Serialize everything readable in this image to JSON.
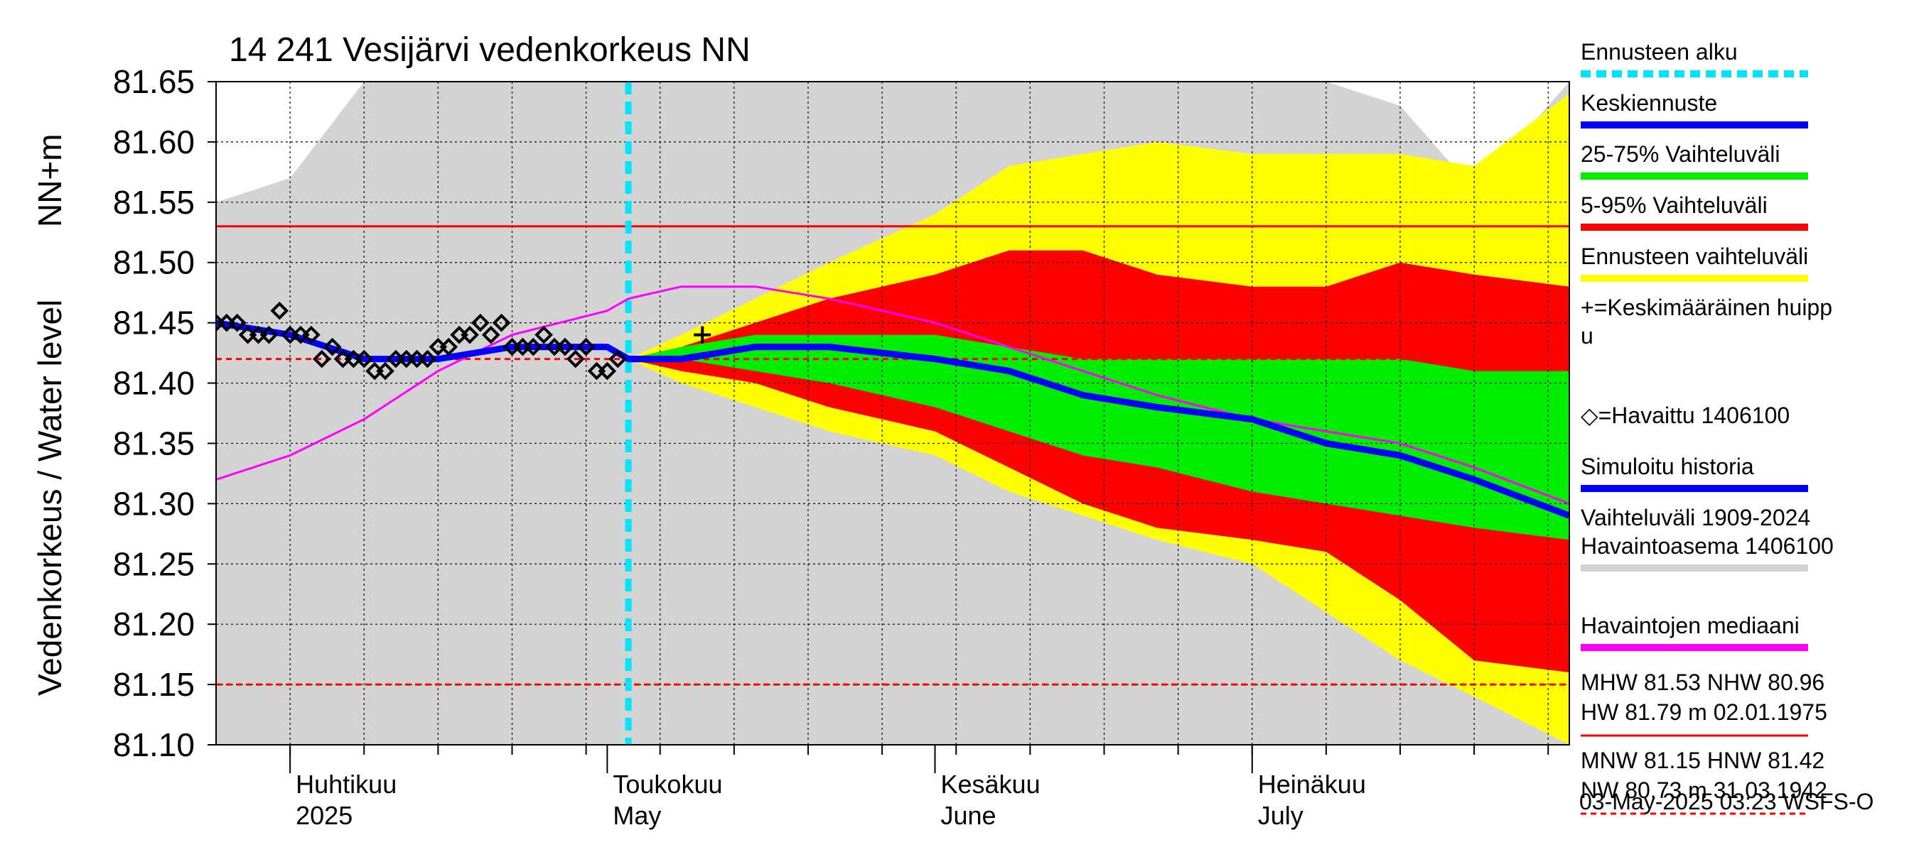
{
  "chart_data": {
    "type": "area",
    "title": "14 241 Vesijärvi vedenkorkeus NN",
    "ylabel": "Vedenkorkeus / Water level",
    "yunit": "NN+m",
    "ylim": [
      81.1,
      81.65
    ],
    "y_ticks": [
      "81.65",
      "81.60",
      "81.55",
      "81.50",
      "81.45",
      "81.40",
      "81.35",
      "81.30",
      "81.25",
      "81.20",
      "81.15",
      "81.10"
    ],
    "x_range": [
      "2025-03-25",
      "2025-07-31"
    ],
    "forecast_start": "2025-05-03",
    "months": [
      {
        "date": "2025-04-01",
        "fi": "Huhtikuu",
        "en": "2025"
      },
      {
        "date": "2025-05-01",
        "fi": "Toukokuu",
        "en": "May"
      },
      {
        "date": "2025-06-01",
        "fi": "Kesäkuu",
        "en": "June"
      },
      {
        "date": "2025-07-01",
        "fi": "Heinäkuu",
        "en": "July"
      }
    ],
    "reference_lines": [
      {
        "name": "MHW",
        "value": 81.53,
        "style": "solid"
      },
      {
        "name": "HNW",
        "value": 81.42,
        "style": "dashed"
      },
      {
        "name": "MNW",
        "value": 81.15,
        "style": "dashed"
      }
    ],
    "x_dates": [
      "2025-03-25",
      "2025-04-01",
      "2025-04-08",
      "2025-04-15",
      "2025-04-22",
      "2025-05-01",
      "2025-05-03",
      "2025-05-08",
      "2025-05-15",
      "2025-05-22",
      "2025-06-01",
      "2025-06-08",
      "2025-06-15",
      "2025-06-22",
      "2025-07-01",
      "2025-07-08",
      "2025-07-15",
      "2025-07-22",
      "2025-07-31"
    ],
    "series": [
      {
        "name": "Vaihteluväli 1909-2024 Havaintoasema 1406100",
        "color": "#d3d3d3",
        "high": [
          81.55,
          81.57,
          81.65,
          81.65,
          81.65,
          81.65,
          81.65,
          81.65,
          81.65,
          81.65,
          81.65,
          81.65,
          81.65,
          81.65,
          81.65,
          81.65,
          81.63,
          81.56,
          81.65
        ],
        "low": [
          81.1,
          81.1,
          81.1,
          81.1,
          81.1,
          81.1,
          81.1,
          81.1,
          81.1,
          81.1,
          81.1,
          81.1,
          81.1,
          81.1,
          81.1,
          81.1,
          81.1,
          81.1,
          81.1
        ]
      },
      {
        "name": "Ennusteen vaihteluväli",
        "color": "#ffff00",
        "high": [
          null,
          null,
          null,
          null,
          null,
          null,
          81.42,
          81.44,
          81.47,
          81.5,
          81.54,
          81.58,
          81.59,
          81.6,
          81.59,
          81.59,
          81.59,
          81.58,
          81.64
        ],
        "low": [
          null,
          null,
          null,
          null,
          null,
          null,
          81.42,
          81.4,
          81.38,
          81.36,
          81.34,
          81.31,
          81.29,
          81.27,
          81.25,
          81.21,
          81.17,
          81.14,
          81.1
        ]
      },
      {
        "name": "5-95% Vaihteluväli",
        "color": "#ff0000",
        "high": [
          null,
          null,
          null,
          null,
          null,
          null,
          81.42,
          81.43,
          81.45,
          81.47,
          81.49,
          81.51,
          81.51,
          81.49,
          81.48,
          81.48,
          81.5,
          81.49,
          81.48
        ],
        "low": [
          null,
          null,
          null,
          null,
          null,
          null,
          81.42,
          81.41,
          81.4,
          81.38,
          81.36,
          81.33,
          81.3,
          81.28,
          81.27,
          81.26,
          81.22,
          81.17,
          81.16
        ]
      },
      {
        "name": "25-75% Vaihteluväli",
        "color": "#00ee00",
        "high": [
          null,
          null,
          null,
          null,
          null,
          null,
          81.42,
          81.43,
          81.44,
          81.44,
          81.44,
          81.43,
          81.42,
          81.42,
          81.42,
          81.42,
          81.42,
          81.41,
          81.41
        ],
        "low": [
          null,
          null,
          null,
          null,
          null,
          null,
          81.42,
          81.42,
          81.41,
          81.4,
          81.38,
          81.36,
          81.34,
          81.33,
          81.31,
          81.3,
          81.29,
          81.28,
          81.27
        ]
      },
      {
        "name": "Havaintojen mediaani",
        "color": "#ff00ff",
        "values": [
          81.32,
          81.34,
          81.37,
          81.41,
          81.44,
          81.46,
          81.47,
          81.48,
          81.48,
          81.47,
          81.45,
          81.43,
          81.41,
          81.39,
          81.37,
          81.36,
          81.35,
          81.33,
          81.3
        ]
      },
      {
        "name": "Simuloitu historia",
        "color": "#0000ff",
        "values": [
          81.45,
          81.44,
          81.42,
          81.42,
          81.43,
          81.43,
          81.42,
          81.42,
          81.43,
          81.43,
          81.42,
          81.41,
          81.39,
          81.38,
          81.37,
          81.35,
          81.34,
          81.32,
          81.29
        ]
      },
      {
        "name": "Keskiennuste",
        "color": "#0000ff",
        "values": [
          null,
          null,
          null,
          null,
          null,
          null,
          81.42,
          81.42,
          81.43,
          81.43,
          81.42,
          81.41,
          81.39,
          81.38,
          81.37,
          81.35,
          81.34,
          81.32,
          81.29
        ]
      }
    ],
    "observed": {
      "name": "Havaittu 1406100",
      "dates": [
        "2025-03-25",
        "2025-03-26",
        "2025-03-27",
        "2025-03-28",
        "2025-03-29",
        "2025-03-30",
        "2025-03-31",
        "2025-04-01",
        "2025-04-02",
        "2025-04-03",
        "2025-04-04",
        "2025-04-05",
        "2025-04-06",
        "2025-04-07",
        "2025-04-08",
        "2025-04-09",
        "2025-04-10",
        "2025-04-11",
        "2025-04-12",
        "2025-04-13",
        "2025-04-14",
        "2025-04-15",
        "2025-04-16",
        "2025-04-17",
        "2025-04-18",
        "2025-04-19",
        "2025-04-20",
        "2025-04-21",
        "2025-04-22",
        "2025-04-23",
        "2025-04-24",
        "2025-04-25",
        "2025-04-26",
        "2025-04-27",
        "2025-04-28",
        "2025-04-29",
        "2025-04-30",
        "2025-05-01",
        "2025-05-02"
      ],
      "values": [
        81.45,
        81.45,
        81.45,
        81.44,
        81.44,
        81.44,
        81.46,
        81.44,
        81.44,
        81.44,
        81.42,
        81.43,
        81.42,
        81.42,
        81.42,
        81.41,
        81.41,
        81.42,
        81.42,
        81.42,
        81.42,
        81.43,
        81.43,
        81.44,
        81.44,
        81.45,
        81.44,
        81.45,
        81.43,
        81.43,
        81.43,
        81.44,
        81.43,
        81.43,
        81.42,
        81.43,
        81.41,
        81.41,
        81.42
      ]
    },
    "mean_peak": {
      "name": "Keskimääräinen huippu",
      "date": "2025-05-10",
      "value": 81.44
    },
    "legend": [
      {
        "label": "Ennusteen alku",
        "color": "#00e5ff",
        "style": "dashed"
      },
      {
        "label": "Keskiennuste",
        "color": "#0000ff",
        "style": "solid"
      },
      {
        "label": "25-75% Vaihteluväli",
        "color": "#00ee00",
        "style": "solid"
      },
      {
        "label": "5-95% Vaihteluväli",
        "color": "#ff0000",
        "style": "solid"
      },
      {
        "label": "Ennusteen vaihteluväli",
        "color": "#ffff00",
        "style": "solid"
      },
      {
        "label": "+=Keskimääräinen huipp\nu",
        "color": "#000000",
        "style": "none"
      },
      {
        "label": "◇=Havaittu 1406100",
        "color": "#000000",
        "style": "none"
      },
      {
        "label": "Simuloitu historia",
        "color": "#0000ff",
        "style": "solid"
      },
      {
        "label": "Vaihteluväli 1909-2024\n Havaintoasema 1406100",
        "color": "#d3d3d3",
        "style": "solid"
      },
      {
        "label": "Havaintojen mediaani",
        "color": "#ff00ff",
        "style": "solid"
      }
    ],
    "stats": [
      {
        "lines": [
          "MHW  81.53 NHW  80.96",
          "HW  81.79 m 02.01.1975"
        ],
        "color": "#ff0000",
        "style": "solid"
      },
      {
        "lines": [
          "MNW  81.15 HNW  81.42",
          "NW  80.73 m 31.03.1942"
        ],
        "color": "#ff0000",
        "style": "dashed"
      }
    ],
    "footer": "03-May-2025 03:23 WSFS-O"
  }
}
